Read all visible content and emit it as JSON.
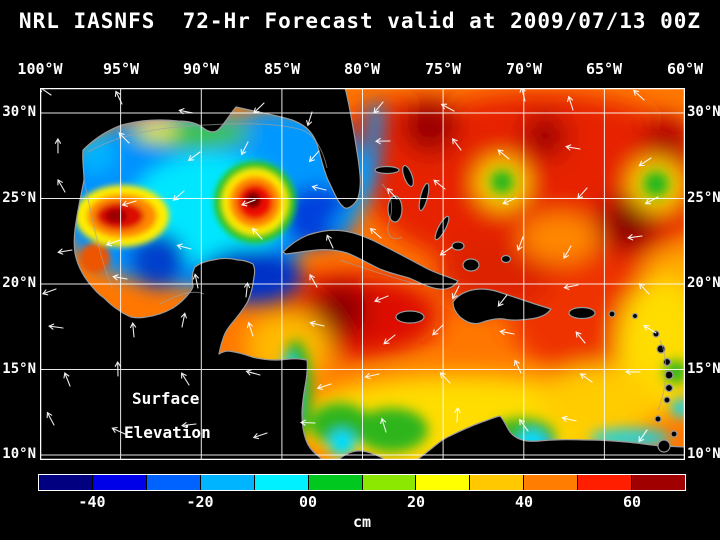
{
  "title": "NRL IASNFS  72-Hr Forecast valid at 2009/07/13 00Z",
  "map": {
    "top_axis_labels": [
      "100°W",
      "95°W",
      "90°W",
      "85°W",
      "80°W",
      "75°W",
      "70°W",
      "65°W",
      "60°W"
    ],
    "left_axis_labels": [
      "30°N",
      "25°N",
      "20°N",
      "15°N",
      "10°N"
    ],
    "right_axis_labels": [
      "30°N",
      "25°N",
      "20°N",
      "15°N",
      "10°N"
    ],
    "overlay_label_line1": "Surface",
    "overlay_label_line2": "Elevation"
  },
  "colorbar": {
    "unit": "cm",
    "tick_labels": [
      "-40",
      "-20",
      "00",
      "20",
      "40",
      "60"
    ],
    "segment_colors": [
      "#000080",
      "#0000e8",
      "#0063ff",
      "#00b4ff",
      "#00f0ff",
      "#00c81e",
      "#8ce800",
      "#ffff00",
      "#ffc800",
      "#ff7d00",
      "#ff1e00",
      "#a00000"
    ]
  },
  "colors": {
    "background": "#000000",
    "grid": "#ffffff",
    "coastline": "#9a9a9a",
    "land": "#000000",
    "wind_arrows": "#ffffff",
    "text": "#ffffff"
  },
  "map_info": {
    "variable": "Surface Elevation",
    "unit": "cm",
    "lon_extent": [
      "100°W",
      "60°W"
    ],
    "lat_extent": [
      "10°N",
      "30°N"
    ]
  }
}
